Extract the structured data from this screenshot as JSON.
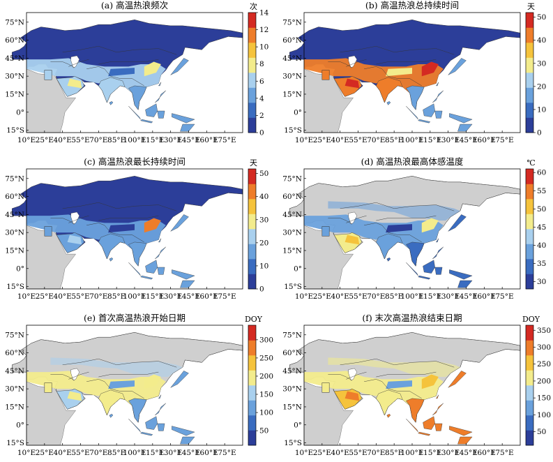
{
  "lat_ticks": [
    "75°N",
    "60°N",
    "45°N",
    "30°N",
    "15°N",
    "0°",
    "15°S"
  ],
  "lon_ticks": [
    "10°E",
    "25°E",
    "40°E",
    "55°E",
    "70°E",
    "85°E",
    "100°E",
    "115°E",
    "130°E",
    "145°E",
    "160°E",
    "175°E"
  ],
  "panels": [
    {
      "id": "a",
      "title": "(a) 高温热浪频次",
      "unit": "次",
      "colorbar_ticks": [
        "0",
        "2",
        "4",
        "6",
        "8",
        "10",
        "12",
        "14"
      ],
      "colorbar_range": [
        0,
        14
      ],
      "palette": [
        "#2c3e99",
        "#3a6cc0",
        "#6aa1dc",
        "#a9d0ee",
        "#f3ec8c",
        "#f5c33c",
        "#ee7d2a",
        "#d42a22"
      ],
      "fill_levels": {
        "land_default": 0.02,
        "south_band": 0.45,
        "hot_core": 0.55,
        "tropics": 0.35,
        "desert": 0.4
      }
    },
    {
      "id": "b",
      "title": "(b) 高温热浪总持续时间",
      "unit": "天",
      "colorbar_ticks": [
        "0",
        "10",
        "20",
        "30",
        "40",
        "50"
      ],
      "colorbar_range": [
        0,
        52
      ],
      "palette": [
        "#2c3e99",
        "#3a6cc0",
        "#6aa1dc",
        "#a9d0ee",
        "#f3ec8c",
        "#f5c33c",
        "#ee7d2a",
        "#d42a22"
      ],
      "fill_levels": {
        "land_default": 0.02,
        "south_band": 0.9,
        "hot_core": 0.95,
        "tropics": 0.35,
        "desert": 0.92
      }
    },
    {
      "id": "c",
      "title": "(c) 高温热浪最长持续时间",
      "unit": "天",
      "colorbar_ticks": [
        "0",
        "10",
        "20",
        "30",
        "40",
        "50"
      ],
      "colorbar_range": [
        0,
        52
      ],
      "palette": [
        "#2c3e99",
        "#3a6cc0",
        "#6aa1dc",
        "#a9d0ee",
        "#f3ec8c",
        "#f5c33c",
        "#ee7d2a",
        "#d42a22"
      ],
      "fill_levels": {
        "land_default": 0.02,
        "south_band": 0.3,
        "hot_core": 0.8,
        "tropics": 0.25,
        "desert": 0.3
      }
    },
    {
      "id": "d",
      "title": "(d) 高温热浪最高体感温度",
      "unit": "℃",
      "colorbar_ticks": [
        "30",
        "35",
        "40",
        "45",
        "50",
        "55",
        "60"
      ],
      "colorbar_range": [
        28,
        61
      ],
      "palette": [
        "#2c3e99",
        "#3a6cc0",
        "#6aa1dc",
        "#a9d0ee",
        "#f3ec8c",
        "#f5c33c",
        "#ee7d2a",
        "#d42a22"
      ],
      "fill_levels": {
        "land_default": -1,
        "south_band": 0.3,
        "hot_core": 0.5,
        "tropics": 0.2,
        "desert": 0.55
      }
    },
    {
      "id": "e",
      "title": "(e) 首次高温热浪开始日期",
      "unit": "DOY",
      "colorbar_ticks": [
        "50",
        "100",
        "150",
        "200",
        "250",
        "300"
      ],
      "colorbar_range": [
        10,
        340
      ],
      "palette": [
        "#2c3e99",
        "#3a6cc0",
        "#6aa1dc",
        "#a9d0ee",
        "#f3ec8c",
        "#f5c33c",
        "#ee7d2a",
        "#d42a22"
      ],
      "fill_levels": {
        "land_default": -1,
        "south_band": 0.55,
        "hot_core": 0.5,
        "tropics": 0.35,
        "desert": 0.45
      }
    },
    {
      "id": "f",
      "title": "(f) 末次高温热浪结束日期",
      "unit": "DOY",
      "colorbar_ticks": [
        "50",
        "100",
        "150",
        "200",
        "250",
        "300",
        "350"
      ],
      "colorbar_range": [
        10,
        365
      ],
      "palette": [
        "#2c3e99",
        "#3a6cc0",
        "#6aa1dc",
        "#a9d0ee",
        "#f3ec8c",
        "#f5c33c",
        "#ee7d2a",
        "#d42a22"
      ],
      "fill_levels": {
        "land_default": -1,
        "south_band": 0.6,
        "hot_core": 0.75,
        "tropics": 0.8,
        "desert": 0.7
      }
    }
  ]
}
